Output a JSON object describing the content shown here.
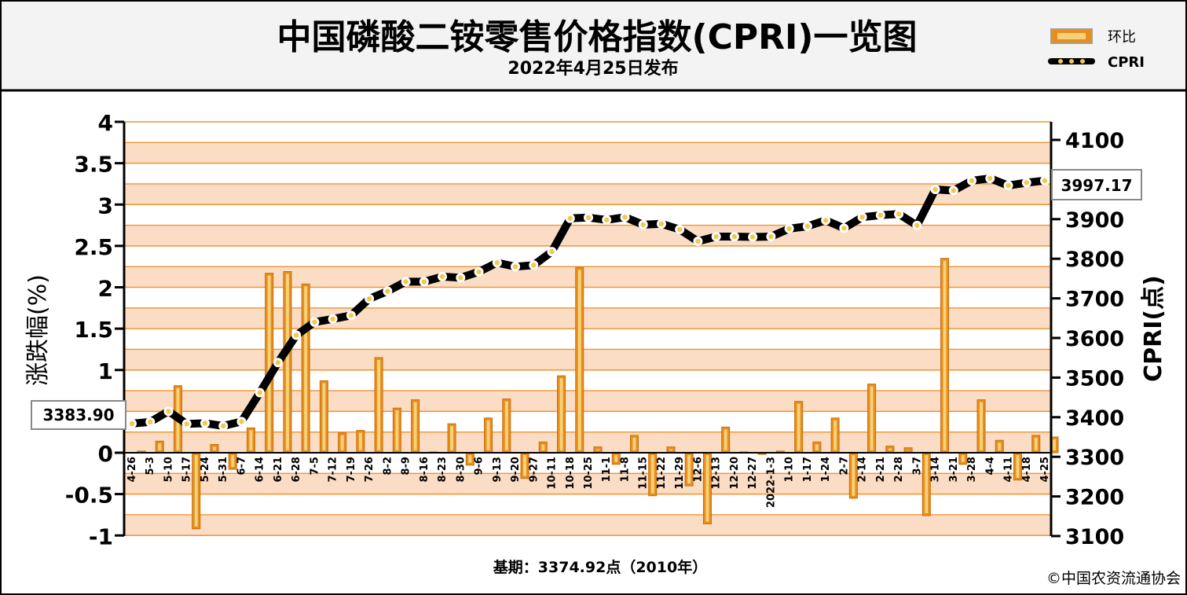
{
  "title": "中国磷酸二铵零售价格指数(CPRI)一览图",
  "subtitle": "2022年4月25日发布",
  "legend": {
    "bar_label": "环比",
    "line_label": "CPRI"
  },
  "footer": {
    "base": "基期：3374.92点（2010年）",
    "copyright": "©中国农资流通协会"
  },
  "callouts": {
    "left": "3383.90",
    "right": "3997.17"
  },
  "colors": {
    "bar": "#e98d1c",
    "bar_core": "#f5d27a",
    "band": "#fbdcc4",
    "grid": "#ef9532",
    "line": "#000000",
    "marker": "#f2c94c"
  },
  "chart_data": {
    "type": "bar+line",
    "xlabel": "",
    "y_left_label": "涨跌幅(%)",
    "y_right_label": "CPRI(点)",
    "y_left_lim": [
      -1,
      4
    ],
    "y_left_ticks": [
      "4",
      "3.5",
      "3",
      "2.5",
      "2",
      "1.5",
      "1",
      "0.5",
      "0",
      "-0.5",
      "-1"
    ],
    "y_right_lim": [
      3100,
      4150
    ],
    "y_right_ticks": [
      "4100",
      "3900",
      "3800",
      "3700",
      "3600",
      "3500",
      "3400",
      "3300",
      "3200",
      "3100"
    ],
    "categories": [
      "4-26",
      "5-3",
      "5-10",
      "5-17",
      "5-24",
      "5-31",
      "6-7",
      "6-14",
      "6-21",
      "6-28",
      "7-5",
      "7-12",
      "7-19",
      "7-26",
      "8-2",
      "8-9",
      "8-16",
      "8-23",
      "8-30",
      "9-6",
      "9-13",
      "9-20",
      "9-27",
      "10-11",
      "10-18",
      "10-25",
      "11-1",
      "11-8",
      "11-15",
      "11-22",
      "11-29",
      "12-6",
      "12-13",
      "12-20",
      "12-27",
      "2022-1-3",
      "1-10",
      "1-17",
      "1-24",
      "2-7",
      "2-14",
      "2-21",
      "2-28",
      "3-7",
      "3-14",
      "3-21",
      "3-28",
      "4-4",
      "4-11",
      "4-18",
      "4-25"
    ],
    "series": [
      {
        "name": "环比",
        "type": "bar",
        "values": [
          0.02,
          0.14,
          0.81,
          -0.92,
          0.1,
          -0.2,
          0.3,
          2.17,
          2.19,
          2.04,
          0.87,
          0.24,
          0.27,
          1.15,
          0.54,
          0.64,
          0.01,
          0.35,
          -0.15,
          0.42,
          0.65,
          -0.31,
          0.13,
          0.93,
          2.24,
          0.07,
          -0.14,
          0.21,
          -0.52,
          0.07,
          -0.4,
          -0.86,
          0.31,
          0.01,
          -0.02,
          0.02,
          0.62,
          0.13,
          0.42,
          -0.55,
          0.83,
          0.08,
          0.06,
          -0.76,
          2.35,
          -0.14,
          0.64,
          0.15,
          -0.33,
          0.21,
          0.19
        ]
      },
      {
        "name": "CPRI",
        "type": "line",
        "values": [
          3383.9,
          3388,
          3415,
          3383,
          3385,
          3378,
          3389,
          3462,
          3538,
          3607,
          3640,
          3648,
          3657,
          3699,
          3718,
          3742,
          3742,
          3755,
          3752,
          3767,
          3790,
          3780,
          3784,
          3818,
          3902,
          3904,
          3898,
          3905,
          3886,
          3888,
          3874,
          3844,
          3856,
          3856,
          3855,
          3856,
          3876,
          3882,
          3897,
          3877,
          3905,
          3910,
          3913,
          3884,
          3975,
          3972,
          3997,
          4003,
          3985,
          3992,
          3997.17
        ]
      }
    ]
  }
}
